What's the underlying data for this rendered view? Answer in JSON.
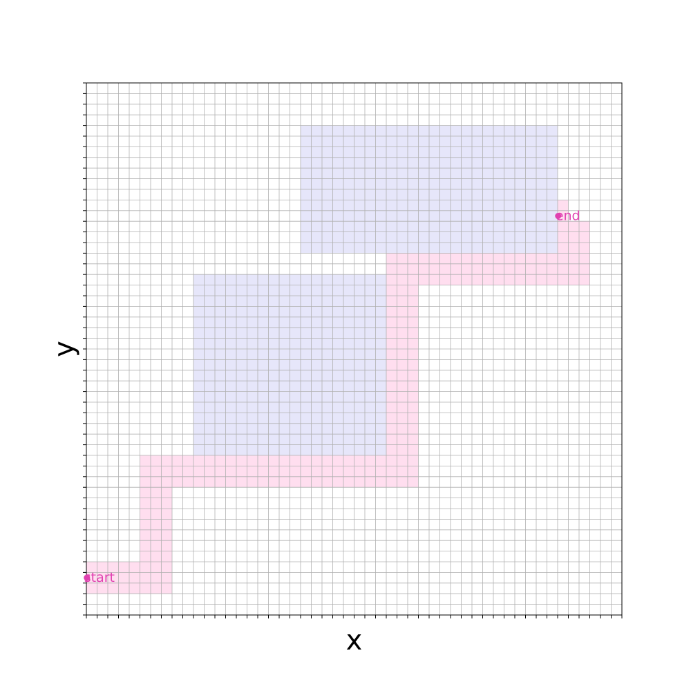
{
  "chart_data": {
    "type": "grid-path",
    "xlabel": "x",
    "ylabel": "y",
    "grid": true,
    "xlim": [
      0,
      50
    ],
    "ylim": [
      0,
      50
    ],
    "obstacles": [
      {
        "x": [
          20,
          44
        ],
        "y": [
          34,
          46
        ]
      },
      {
        "x": [
          10,
          28
        ],
        "y": [
          15,
          32
        ]
      }
    ],
    "path_cells": [
      {
        "x": [
          0,
          8
        ],
        "y": [
          2,
          5
        ]
      },
      {
        "x": [
          5,
          8
        ],
        "y": [
          2,
          15
        ]
      },
      {
        "x": [
          5,
          31
        ],
        "y": [
          12,
          15
        ]
      },
      {
        "x": [
          28,
          31
        ],
        "y": [
          12,
          34
        ]
      },
      {
        "x": [
          28,
          47
        ],
        "y": [
          31,
          34
        ]
      },
      {
        "x": [
          44,
          47
        ],
        "y": [
          31,
          37
        ]
      },
      {
        "x": [
          44,
          45
        ],
        "y": [
          37,
          39
        ]
      }
    ],
    "start": {
      "x": 0.5,
      "y": 3.5,
      "label": "start"
    },
    "end": {
      "x": 44.5,
      "y": 37.5,
      "label": "end"
    },
    "colors": {
      "obstacle": "#e6e6fa",
      "path": "#ff69b4",
      "path_opacity": 0.22,
      "marker": "#e040b0",
      "grid": "#b0b0b0"
    }
  }
}
